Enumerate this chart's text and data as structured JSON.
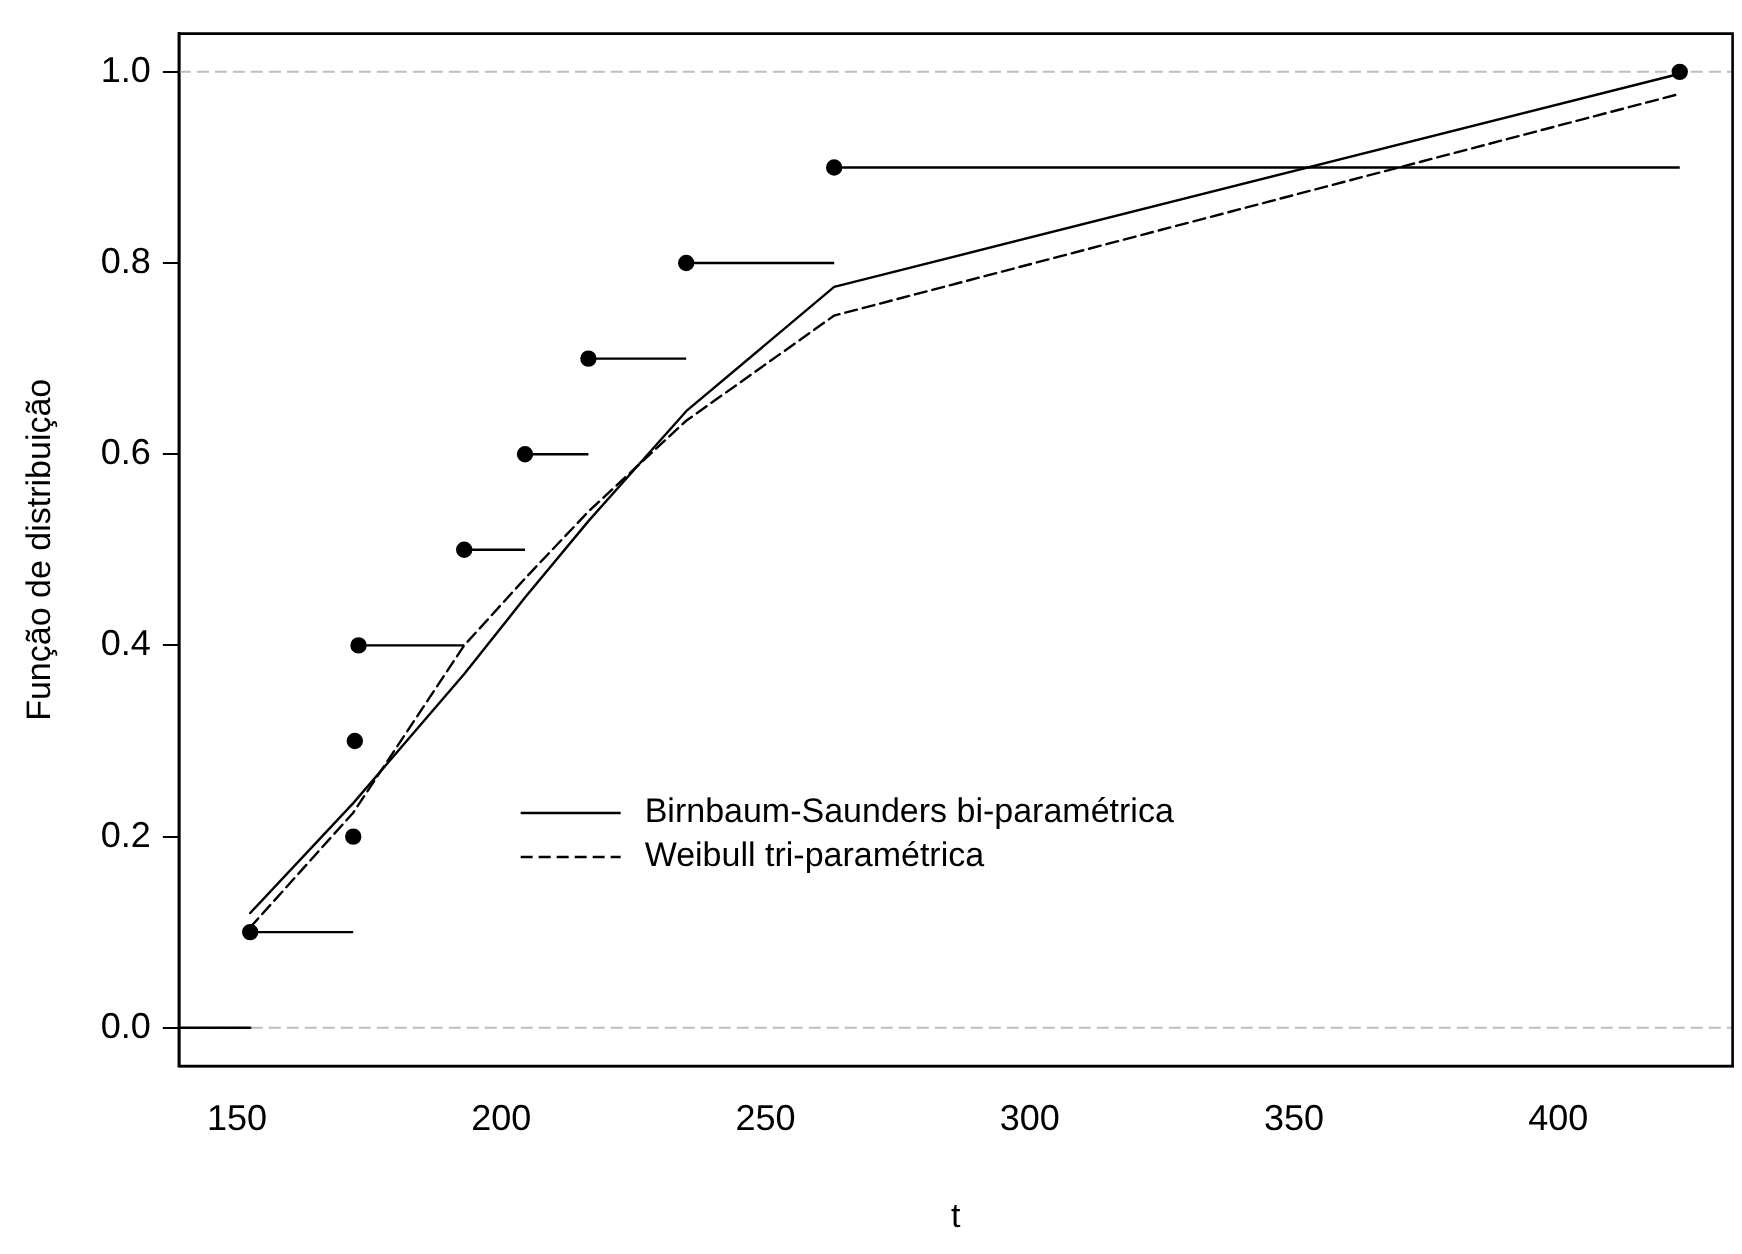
{
  "chart_data": {
    "type": "line",
    "xlabel": "t",
    "ylabel": "Função de distribuição",
    "xlim": [
      139,
      433
    ],
    "ylim": [
      -0.04,
      1.04
    ],
    "xticks": [
      150,
      200,
      250,
      300,
      350,
      400
    ],
    "yticks": [
      {
        "value": 0,
        "label": "0.0"
      },
      {
        "value": 0.2,
        "label": "0.2"
      },
      {
        "value": 0.4,
        "label": "0.4"
      },
      {
        "value": 0.6,
        "label": "0.6"
      },
      {
        "value": 0.8,
        "label": "0.8"
      },
      {
        "value": 1,
        "label": "1.0"
      }
    ],
    "grid": false,
    "legend": "bottom",
    "ref_lines": [
      {
        "axis": "y",
        "value": 0,
        "color": "#bebebe",
        "line_style": "dashed"
      },
      {
        "axis": "y",
        "value": 1,
        "color": "#bebebe",
        "line_style": "dashed"
      }
    ],
    "series": [
      {
        "type": "scatter",
        "color": "#000000",
        "marker": "circle",
        "x": [
          152.5,
          172,
          172.3,
          173,
          193,
          204.5,
          216.5,
          235,
          263,
          423
        ],
        "values": [
          0.1,
          0.2,
          0.3,
          0.4,
          0.5,
          0.6,
          0.7,
          0.8,
          0.9,
          1.0
        ],
        "xerrors": [
          [
            152.5,
            172
          ],
          [
            172,
            172.3
          ],
          [
            172.3,
            173
          ],
          [
            173,
            193
          ],
          [
            193,
            204.5
          ],
          [
            204.5,
            216.5
          ],
          [
            216.5,
            235
          ],
          [
            235,
            263
          ],
          [
            263,
            423
          ],
          null
        ]
      },
      {
        "color": "#000000",
        "marker": "none",
        "line_style": "solid",
        "x": [
          139,
          152.5
        ],
        "values": [
          0,
          0
        ]
      },
      {
        "name": "Birnbaum-Saunders bi-paramétrica",
        "color": "#000000",
        "marker": "none",
        "line_style": "solid",
        "x": [
          152.5,
          172,
          193,
          204.5,
          216.5,
          235,
          263,
          423
        ],
        "values": [
          0.12,
          0.235,
          0.37,
          0.45,
          0.53,
          0.645,
          0.775,
          0.998
        ]
      },
      {
        "name": "Weibull tri-paramétrica",
        "color": "#000000",
        "marker": "none",
        "line_style": "dashed",
        "x": [
          152.5,
          172,
          193,
          204.5,
          216.5,
          235,
          263,
          423
        ],
        "values": [
          0.105,
          0.225,
          0.4,
          0.47,
          0.54,
          0.635,
          0.745,
          0.977
        ]
      }
    ]
  }
}
